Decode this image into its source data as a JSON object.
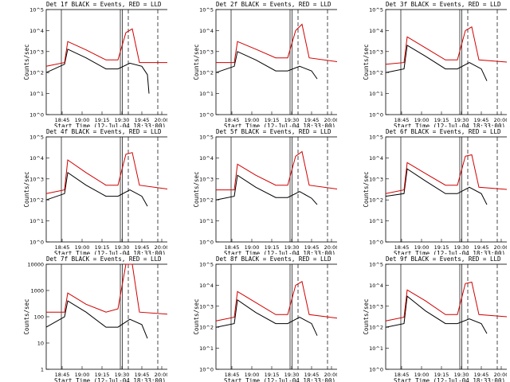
{
  "chart_data": [
    {
      "type": "line",
      "title": "Det 1f BLACK = Events, RED = LLD",
      "xlabel": "Start Time (12-Jul-04 18:33:00)",
      "ylabel": "Counts/sec",
      "yticks": [
        "10^0",
        "10^1",
        "10^2",
        "10^3",
        "10^4",
        "10^5"
      ],
      "xticks": [
        "18:45",
        "19:00",
        "19:15",
        "19:30",
        "19:45",
        "20:00"
      ],
      "ylim": [
        1,
        100000
      ],
      "xlim": [
        "18:33",
        "20:09"
      ],
      "series": [
        {
          "color": "#000000",
          "values": [
            [
              18.55,
              100
            ],
            [
              18.78,
              250
            ],
            [
              18.82,
              1300
            ],
            [
              19.05,
              500
            ],
            [
              19.3,
              150
            ],
            [
              19.45,
              150
            ],
            [
              19.6,
              280
            ],
            [
              19.75,
              200
            ],
            [
              19.82,
              80
            ],
            [
              19.84,
              10
            ]
          ]
        },
        {
          "color": "#d00000",
          "values": [
            [
              18.55,
              200
            ],
            [
              18.78,
              300
            ],
            [
              18.82,
              3000
            ],
            [
              19.05,
              1200
            ],
            [
              19.3,
              400
            ],
            [
              19.45,
              400
            ],
            [
              19.55,
              8000
            ],
            [
              19.63,
              12000
            ],
            [
              19.72,
              300
            ],
            [
              20.15,
              300
            ]
          ]
        }
      ]
    },
    {
      "type": "line",
      "title": "Det 2f BLACK = Events, RED = LLD",
      "xlabel": "Start Time (12-Jul-04 18:33:00)",
      "ylabel": "Counts/sec",
      "yticks": [
        "10^0",
        "10^1",
        "10^2",
        "10^3",
        "10^4",
        "10^5"
      ],
      "xticks": [
        "18:45",
        "19:00",
        "19:15",
        "19:30",
        "19:45",
        "20:00"
      ],
      "ylim": [
        1,
        100000
      ],
      "xlim": [
        "18:33",
        "20:09"
      ],
      "series": [
        {
          "color": "#000000",
          "values": [
            [
              18.55,
              100
            ],
            [
              18.78,
              200
            ],
            [
              18.82,
              1000
            ],
            [
              19.05,
              400
            ],
            [
              19.3,
              120
            ],
            [
              19.45,
              120
            ],
            [
              19.6,
              200
            ],
            [
              19.75,
              120
            ],
            [
              19.82,
              50
            ]
          ]
        },
        {
          "color": "#d00000",
          "values": [
            [
              18.55,
              300
            ],
            [
              18.78,
              300
            ],
            [
              18.82,
              3000
            ],
            [
              19.05,
              1300
            ],
            [
              19.3,
              500
            ],
            [
              19.45,
              500
            ],
            [
              19.55,
              10000
            ],
            [
              19.63,
              20000
            ],
            [
              19.72,
              500
            ],
            [
              20.15,
              300
            ]
          ]
        }
      ]
    },
    {
      "type": "line",
      "title": "Det 3f BLACK = Events, RED = LLD",
      "xlabel": "Start Time (12-Jul-04 18:33:00)",
      "ylabel": "Counts/sec",
      "yticks": [
        "10^0",
        "10^1",
        "10^2",
        "10^3",
        "10^4",
        "10^5"
      ],
      "xticks": [
        "18:45",
        "19:00",
        "19:15",
        "19:30",
        "19:45",
        "20:00"
      ],
      "ylim": [
        1,
        100000
      ],
      "xlim": [
        "18:33",
        "20:09"
      ],
      "series": [
        {
          "color": "#000000",
          "values": [
            [
              18.55,
              100
            ],
            [
              18.78,
              150
            ],
            [
              18.82,
              2000
            ],
            [
              19.05,
              600
            ],
            [
              19.3,
              150
            ],
            [
              19.45,
              150
            ],
            [
              19.6,
              300
            ],
            [
              19.75,
              150
            ],
            [
              19.82,
              40
            ]
          ]
        },
        {
          "color": "#d00000",
          "values": [
            [
              18.55,
              250
            ],
            [
              18.78,
              300
            ],
            [
              18.82,
              5000
            ],
            [
              19.05,
              1500
            ],
            [
              19.3,
              400
            ],
            [
              19.45,
              400
            ],
            [
              19.55,
              10000
            ],
            [
              19.63,
              15000
            ],
            [
              19.72,
              400
            ],
            [
              20.15,
              300
            ]
          ]
        }
      ]
    },
    {
      "type": "line",
      "title": "Det 4f BLACK = Events, RED = LLD",
      "xlabel": "Start Time (12-Jul-04 18:33:00)",
      "ylabel": "Counts/sec",
      "yticks": [
        "10^0",
        "10^1",
        "10^2",
        "10^3",
        "10^4",
        "10^5"
      ],
      "xticks": [
        "18:45",
        "19:00",
        "19:15",
        "19:30",
        "19:45",
        "20:00"
      ],
      "ylim": [
        1,
        100000
      ],
      "xlim": [
        "18:33",
        "20:09"
      ],
      "series": [
        {
          "color": "#000000",
          "values": [
            [
              18.55,
              100
            ],
            [
              18.78,
              200
            ],
            [
              18.82,
              2000
            ],
            [
              19.05,
              500
            ],
            [
              19.3,
              150
            ],
            [
              19.45,
              150
            ],
            [
              19.6,
              300
            ],
            [
              19.75,
              150
            ],
            [
              19.82,
              50
            ]
          ]
        },
        {
          "color": "#d00000",
          "values": [
            [
              18.55,
              200
            ],
            [
              18.78,
              300
            ],
            [
              18.82,
              8000
            ],
            [
              19.05,
              2000
            ],
            [
              19.3,
              500
            ],
            [
              19.45,
              500
            ],
            [
              19.55,
              15000
            ],
            [
              19.63,
              18000
            ],
            [
              19.72,
              500
            ],
            [
              20.15,
              300
            ]
          ]
        }
      ]
    },
    {
      "type": "line",
      "title": "Det 5f BLACK = Events, RED = LLD",
      "xlabel": "Start Time (12-Jul-04 18:33:00)",
      "ylabel": "Counts/sec",
      "yticks": [
        "10^0",
        "10^1",
        "10^2",
        "10^3",
        "10^4",
        "10^5"
      ],
      "xticks": [
        "18:45",
        "19:00",
        "19:15",
        "19:30",
        "19:45",
        "20:00"
      ],
      "ylim": [
        1,
        100000
      ],
      "xlim": [
        "18:33",
        "20:09"
      ],
      "series": [
        {
          "color": "#000000",
          "values": [
            [
              18.55,
              100
            ],
            [
              18.78,
              150
            ],
            [
              18.82,
              1500
            ],
            [
              19.05,
              400
            ],
            [
              19.3,
              130
            ],
            [
              19.45,
              130
            ],
            [
              19.6,
              250
            ],
            [
              19.75,
              120
            ],
            [
              19.82,
              60
            ]
          ]
        },
        {
          "color": "#d00000",
          "values": [
            [
              18.55,
              300
            ],
            [
              18.78,
              300
            ],
            [
              18.82,
              5000
            ],
            [
              19.05,
              1500
            ],
            [
              19.3,
              500
            ],
            [
              19.45,
              500
            ],
            [
              19.55,
              12000
            ],
            [
              19.63,
              20000
            ],
            [
              19.72,
              500
            ],
            [
              20.15,
              300
            ]
          ]
        }
      ]
    },
    {
      "type": "line",
      "title": "Det 6f BLACK = Events, RED = LLD",
      "xlabel": "Start Time (12-Jul-04 18:33:00)",
      "ylabel": "Counts/sec",
      "yticks": [
        "10^0",
        "10^1",
        "10^2",
        "10^3",
        "10^4",
        "10^5"
      ],
      "xticks": [
        "18:45",
        "19:00",
        "19:15",
        "19:30",
        "19:45",
        "20:00"
      ],
      "ylim": [
        1,
        100000
      ],
      "xlim": [
        "18:33",
        "20:09"
      ],
      "series": [
        {
          "color": "#000000",
          "values": [
            [
              18.55,
              150
            ],
            [
              18.78,
              200
            ],
            [
              18.82,
              3000
            ],
            [
              19.05,
              800
            ],
            [
              19.3,
              200
            ],
            [
              19.45,
              200
            ],
            [
              19.6,
              400
            ],
            [
              19.75,
              200
            ],
            [
              19.82,
              60
            ]
          ]
        },
        {
          "color": "#d00000",
          "values": [
            [
              18.55,
              200
            ],
            [
              18.78,
              300
            ],
            [
              18.82,
              6000
            ],
            [
              19.05,
              1800
            ],
            [
              19.3,
              500
            ],
            [
              19.45,
              500
            ],
            [
              19.55,
              12000
            ],
            [
              19.63,
              14000
            ],
            [
              19.72,
              400
            ],
            [
              20.15,
              300
            ]
          ]
        }
      ]
    },
    {
      "type": "line",
      "title": "Det 7f BLACK = Events, RED = LLD",
      "xlabel": "Start Time (12-Jul-04 18:33:00)",
      "ylabel": "Counts/sec",
      "yticks": [
        "1",
        "10",
        "100",
        "1000",
        "10000"
      ],
      "xticks": [
        "18:45",
        "19:00",
        "19:15",
        "19:30",
        "19:45",
        "20:00"
      ],
      "ylim": [
        1,
        10000
      ],
      "xlim": [
        "18:33",
        "20:09"
      ],
      "series": [
        {
          "color": "#000000",
          "values": [
            [
              18.55,
              40
            ],
            [
              18.78,
              100
            ],
            [
              18.82,
              400
            ],
            [
              19.05,
              150
            ],
            [
              19.3,
              40
            ],
            [
              19.45,
              40
            ],
            [
              19.6,
              80
            ],
            [
              19.75,
              50
            ],
            [
              19.82,
              15
            ]
          ]
        },
        {
          "color": "#d00000",
          "values": [
            [
              18.55,
              150
            ],
            [
              18.78,
              150
            ],
            [
              18.82,
              800
            ],
            [
              19.05,
              300
            ],
            [
              19.3,
              150
            ],
            [
              19.45,
              200
            ],
            [
              19.55,
              10000
            ],
            [
              19.63,
              10000
            ],
            [
              19.72,
              150
            ],
            [
              20.15,
              120
            ]
          ]
        }
      ]
    },
    {
      "type": "line",
      "title": "Det 8f BLACK = Events, RED = LLD",
      "xlabel": "Start Time (12-Jul-04 18:33:00)",
      "ylabel": "Counts/sec",
      "yticks": [
        "10^0",
        "10^1",
        "10^2",
        "10^3",
        "10^4",
        "10^5"
      ],
      "xticks": [
        "18:45",
        "19:00",
        "19:15",
        "19:30",
        "19:45",
        "20:00"
      ],
      "ylim": [
        1,
        100000
      ],
      "xlim": [
        "18:33",
        "20:09"
      ],
      "series": [
        {
          "color": "#000000",
          "values": [
            [
              18.55,
              100
            ],
            [
              18.78,
              150
            ],
            [
              18.82,
              2000
            ],
            [
              19.05,
              500
            ],
            [
              19.3,
              150
            ],
            [
              19.45,
              150
            ],
            [
              19.6,
              300
            ],
            [
              19.75,
              150
            ],
            [
              19.82,
              40
            ]
          ]
        },
        {
          "color": "#d00000",
          "values": [
            [
              18.55,
              200
            ],
            [
              18.78,
              300
            ],
            [
              18.82,
              5000
            ],
            [
              19.05,
              1500
            ],
            [
              19.3,
              400
            ],
            [
              19.45,
              400
            ],
            [
              19.55,
              10000
            ],
            [
              19.63,
              15000
            ],
            [
              19.72,
              400
            ],
            [
              20.15,
              250
            ]
          ]
        }
      ]
    },
    {
      "type": "line",
      "title": "Det 9f BLACK = Events, RED = LLD",
      "xlabel": "Start Time (12-Jul-04 18:33:00)",
      "ylabel": "Counts/sec",
      "yticks": [
        "10^0",
        "10^1",
        "10^2",
        "10^3",
        "10^4",
        "10^5"
      ],
      "xticks": [
        "18:45",
        "19:00",
        "19:15",
        "19:30",
        "19:45",
        "20:00"
      ],
      "ylim": [
        1,
        100000
      ],
      "xlim": [
        "18:33",
        "20:09"
      ],
      "series": [
        {
          "color": "#000000",
          "values": [
            [
              18.55,
              100
            ],
            [
              18.78,
              150
            ],
            [
              18.82,
              3000
            ],
            [
              19.05,
              600
            ],
            [
              19.3,
              150
            ],
            [
              19.45,
              150
            ],
            [
              19.6,
              250
            ],
            [
              19.75,
              150
            ],
            [
              19.82,
              50
            ]
          ]
        },
        {
          "color": "#d00000",
          "values": [
            [
              18.55,
              200
            ],
            [
              18.78,
              300
            ],
            [
              18.82,
              6000
            ],
            [
              19.05,
              1800
            ],
            [
              19.3,
              400
            ],
            [
              19.45,
              400
            ],
            [
              19.55,
              12000
            ],
            [
              19.63,
              14000
            ],
            [
              19.72,
              400
            ],
            [
              20.15,
              300
            ]
          ]
        }
      ]
    }
  ]
}
